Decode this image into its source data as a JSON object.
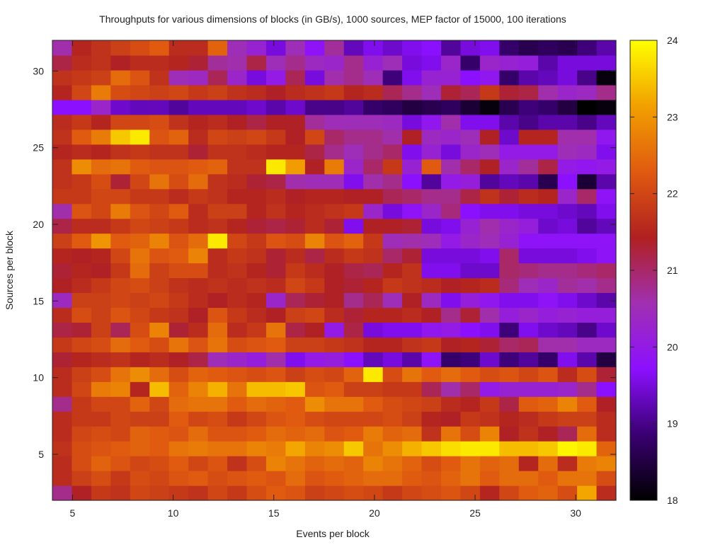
{
  "chart_data": {
    "type": "heatmap",
    "title": "Throughputs for various dimensions of blocks (in GB/s), 1000 sources, MEP factor of 15000, 100 iterations",
    "xlabel": "Events per block",
    "ylabel": "Sources per block",
    "x_range": [
      4,
      32
    ],
    "y_range": [
      2,
      32
    ],
    "x_ticks": [
      5,
      10,
      15,
      20,
      25,
      30
    ],
    "y_ticks": [
      5,
      10,
      15,
      20,
      25,
      30
    ],
    "colorbar": {
      "range": [
        18,
        24
      ],
      "ticks": [
        18,
        19,
        20,
        21,
        22,
        23,
        24
      ],
      "palette": [
        "#000000",
        "#3a0072",
        "#8c10ff",
        "#a030b0",
        "#b02020",
        "#e05a10",
        "#f2a000",
        "#ffff00"
      ]
    },
    "columns": [
      4,
      5,
      6,
      7,
      8,
      9,
      10,
      11,
      12,
      13,
      14,
      15,
      16,
      17,
      18,
      19,
      20,
      21,
      22,
      23,
      24,
      25,
      26,
      27,
      28,
      29,
      30,
      31,
      32
    ],
    "rows": [
      2,
      3,
      4,
      5,
      6,
      7,
      8,
      9,
      10,
      11,
      12,
      13,
      14,
      15,
      16,
      17,
      18,
      19,
      20,
      21,
      22,
      23,
      24,
      25,
      26,
      27,
      28,
      29,
      30,
      31,
      32
    ],
    "values": [
      [
        20.8,
        21.4,
        21.8,
        21.7,
        22.0,
        21.9,
        21.8,
        21.7,
        22.0,
        21.8,
        22.1,
        22.3,
        22.2,
        21.9,
        22.0,
        22.1,
        22.0,
        21.8,
        22.0,
        22.1,
        22.2,
        22.0,
        21.5,
        22.0,
        22.3,
        22.4,
        22.1,
        23.2,
        21.6
      ],
      [
        21.6,
        21.9,
        22.1,
        21.8,
        22.1,
        22.0,
        22.2,
        22.3,
        22.1,
        22.2,
        22.3,
        22.2,
        22.5,
        22.2,
        22.3,
        22.4,
        22.5,
        22.5,
        22.3,
        22.2,
        22.4,
        22.6,
        22.3,
        22.5,
        22.5,
        22.3,
        22.6,
        22.6,
        22.1
      ],
      [
        21.6,
        22.1,
        22.4,
        22.2,
        22.0,
        22.1,
        22.3,
        22.0,
        22.2,
        21.7,
        22.1,
        22.8,
        22.6,
        22.4,
        22.5,
        22.4,
        22.8,
        22.6,
        22.4,
        22.1,
        22.3,
        22.6,
        22.4,
        22.5,
        21.5,
        22.5,
        21.6,
        22.7,
        22.8
      ],
      [
        21.7,
        22.1,
        22.2,
        22.3,
        22.4,
        22.3,
        22.6,
        22.7,
        22.6,
        22.6,
        22.8,
        22.7,
        23.2,
        22.8,
        22.9,
        23.5,
        22.6,
        22.9,
        23.3,
        23.5,
        23.7,
        23.8,
        23.8,
        23.4,
        23.4,
        23.5,
        23.9,
        23.8,
        22.4
      ],
      [
        21.6,
        22.0,
        22.1,
        22.0,
        22.4,
        22.3,
        22.2,
        22.5,
        22.2,
        22.2,
        22.3,
        22.5,
        22.4,
        22.5,
        22.2,
        22.3,
        22.7,
        22.4,
        22.5,
        21.7,
        22.6,
        22.1,
        22.8,
        21.4,
        21.7,
        21.4,
        21.1,
        22.5,
        21.6
      ],
      [
        21.6,
        21.8,
        21.8,
        22.0,
        21.9,
        21.9,
        22.3,
        22.0,
        22.1,
        21.8,
        22.0,
        22.2,
        22.3,
        22.1,
        22.0,
        22.0,
        22.0,
        22.1,
        21.9,
        21.5,
        21.4,
        21.8,
        21.7,
        21.5,
        21.6,
        21.8,
        21.9,
        21.9,
        21.6
      ],
      [
        20.8,
        21.8,
        22.0,
        22.0,
        22.4,
        22.0,
        22.5,
        22.6,
        22.6,
        22.3,
        22.5,
        22.4,
        22.3,
        22.9,
        22.6,
        22.6,
        22.3,
        22.1,
        22.0,
        21.9,
        21.6,
        21.5,
        21.8,
        21.2,
        22.3,
        22.4,
        22.8,
        22.3,
        21.4
      ],
      [
        21.6,
        22.0,
        22.7,
        22.8,
        21.5,
        23.4,
        22.4,
        22.8,
        23.3,
        22.6,
        23.4,
        23.4,
        23.5,
        22.2,
        22.3,
        21.9,
        21.9,
        21.8,
        21.8,
        21.1,
        20.6,
        21.0,
        20.0,
        20.2,
        20.2,
        20.2,
        20.3,
        20.8,
        19.7
      ],
      [
        21.6,
        21.9,
        22.1,
        22.6,
        22.9,
        22.5,
        22.1,
        22.4,
        22.3,
        22.2,
        22.1,
        22.2,
        21.9,
        22.1,
        22.0,
        22.4,
        23.8,
        22.1,
        22.6,
        22.3,
        22.5,
        22.3,
        22.1,
        22.2,
        22.0,
        22.2,
        21.6,
        22.1,
        21.3
      ],
      [
        21.3,
        21.5,
        21.6,
        21.7,
        21.5,
        21.6,
        21.4,
        21.2,
        20.5,
        20.3,
        20.1,
        20.6,
        19.6,
        20.0,
        20.1,
        19.7,
        19.3,
        19.5,
        19.2,
        19.8,
        18.8,
        18.9,
        19.4,
        18.9,
        19.1,
        18.8,
        19.6,
        19.2,
        18.5
      ],
      [
        21.8,
        22.0,
        22.1,
        22.5,
        22.3,
        22.1,
        22.6,
        22.2,
        22.6,
        22.1,
        22.2,
        22.3,
        21.9,
        21.9,
        21.8,
        21.7,
        21.5,
        21.5,
        21.7,
        21.8,
        21.4,
        21.5,
        21.3,
        21.0,
        21.1,
        20.6,
        20.6,
        20.4,
        20.4
      ],
      [
        21.2,
        21.3,
        21.9,
        21.1,
        22.1,
        22.8,
        21.3,
        21.6,
        22.5,
        21.6,
        21.8,
        22.6,
        21.2,
        21.4,
        20.0,
        21.2,
        19.5,
        19.6,
        19.6,
        19.9,
        20.0,
        19.7,
        19.6,
        18.9,
        19.6,
        19.4,
        19.3,
        19.0,
        19.4
      ],
      [
        21.6,
        22.1,
        21.9,
        22.2,
        22.0,
        21.8,
        21.7,
        21.4,
        22.2,
        21.8,
        21.6,
        21.4,
        21.9,
        22.0,
        21.6,
        21.3,
        21.5,
        21.5,
        21.6,
        21.4,
        20.8,
        21.3,
        20.6,
        20.1,
        20.3,
        20.1,
        20.2,
        20.1,
        20.1
      ],
      [
        20.4,
        21.9,
        21.9,
        22.0,
        21.9,
        22.0,
        21.8,
        21.6,
        21.4,
        21.6,
        21.5,
        20.3,
        21.1,
        21.3,
        21.4,
        20.8,
        21.1,
        20.5,
        21.4,
        20.4,
        19.6,
        20.1,
        19.9,
        19.6,
        19.6,
        19.8,
        19.6,
        19.4,
        19.2
      ],
      [
        21.4,
        21.6,
        21.8,
        22.0,
        22.1,
        21.9,
        21.7,
        21.6,
        21.7,
        21.6,
        21.7,
        21.6,
        22.0,
        21.8,
        21.4,
        21.3,
        21.5,
        21.8,
        21.7,
        21.6,
        21.4,
        21.5,
        21.6,
        20.9,
        20.5,
        20.3,
        20.7,
        20.6,
        20.8
      ],
      [
        21.3,
        21.5,
        21.4,
        21.8,
        22.5,
        21.9,
        22.1,
        22.1,
        21.6,
        21.7,
        21.5,
        21.3,
        21.8,
        21.6,
        21.4,
        21.2,
        21.1,
        21.5,
        21.7,
        19.6,
        19.6,
        19.4,
        19.4,
        21.0,
        20.9,
        20.8,
        20.8,
        20.9,
        21.0
      ],
      [
        21.5,
        21.4,
        21.5,
        22.0,
        22.6,
        22.2,
        22.3,
        22.8,
        21.6,
        21.8,
        21.7,
        21.3,
        21.6,
        21.2,
        21.6,
        21.8,
        21.7,
        21.0,
        21.3,
        19.5,
        19.5,
        19.5,
        19.6,
        21.0,
        19.5,
        19.5,
        19.5,
        19.6,
        19.8
      ],
      [
        21.9,
        22.3,
        23.0,
        22.3,
        22.4,
        22.8,
        22.2,
        22.5,
        23.8,
        22.0,
        21.8,
        22.2,
        22.1,
        22.8,
        22.2,
        22.4,
        21.8,
        20.5,
        20.6,
        20.5,
        20.0,
        20.3,
        20.5,
        20.2,
        19.8,
        19.8,
        19.8,
        19.8,
        19.8
      ],
      [
        21.2,
        21.6,
        21.6,
        21.8,
        22.0,
        21.9,
        21.8,
        21.6,
        21.7,
        21.5,
        21.3,
        21.2,
        21.3,
        21.6,
        21.3,
        19.6,
        21.4,
        21.4,
        21.3,
        19.5,
        19.6,
        20.2,
        20.6,
        20.3,
        20.1,
        19.4,
        19.5,
        19.1,
        19.3
      ],
      [
        20.6,
        22.2,
        22.0,
        22.7,
        22.2,
        22.0,
        22.3,
        21.6,
        21.9,
        21.9,
        21.5,
        21.7,
        21.5,
        21.6,
        21.7,
        21.8,
        20.3,
        19.5,
        19.8,
        20.3,
        20.9,
        19.7,
        19.6,
        19.6,
        19.5,
        19.5,
        19.4,
        19.3,
        19.6
      ],
      [
        21.8,
        21.8,
        22.0,
        22.0,
        21.8,
        21.8,
        21.6,
        21.8,
        21.7,
        21.5,
        21.5,
        21.6,
        21.4,
        21.5,
        21.5,
        21.4,
        21.4,
        21.1,
        21.0,
        20.8,
        20.8,
        21.2,
        21.7,
        21.3,
        21.6,
        21.5,
        20.3,
        21.0,
        19.8
      ],
      [
        21.7,
        21.8,
        22.1,
        21.3,
        22.0,
        22.6,
        22.1,
        22.5,
        21.7,
        21.6,
        21.3,
        21.2,
        20.6,
        20.5,
        20.5,
        19.6,
        20.6,
        20.8,
        19.7,
        19.1,
        20.0,
        20.1,
        19.1,
        19.3,
        19.2,
        18.6,
        19.7,
        18.4,
        19.2
      ],
      [
        21.7,
        22.9,
        22.5,
        22.6,
        22.3,
        22.2,
        22.2,
        22.3,
        22.4,
        21.7,
        21.7,
        23.8,
        23.1,
        21.4,
        22.7,
        20.3,
        21.0,
        21.8,
        20.2,
        22.3,
        20.6,
        21.0,
        21.4,
        20.3,
        20.7,
        21.2,
        20.0,
        19.9,
        20.0
      ],
      [
        21.5,
        21.6,
        21.5,
        21.7,
        21.8,
        21.7,
        21.7,
        21.3,
        21.7,
        21.7,
        21.6,
        21.5,
        21.5,
        21.2,
        20.8,
        20.5,
        20.8,
        21.0,
        19.6,
        20.2,
        19.5,
        20.3,
        20.5,
        20.0,
        20.0,
        20.0,
        20.5,
        20.4,
        19.6
      ],
      [
        21.7,
        22.3,
        22.7,
        23.5,
        23.8,
        22.2,
        22.4,
        21.6,
        22.0,
        21.9,
        22.0,
        21.8,
        21.4,
        22.0,
        21.0,
        20.8,
        20.8,
        20.6,
        21.4,
        20.4,
        20.3,
        20.5,
        21.4,
        19.4,
        21.5,
        21.5,
        20.6,
        20.6,
        19.9
      ],
      [
        21.6,
        21.8,
        21.5,
        22.0,
        22.0,
        22.1,
        21.7,
        21.5,
        21.6,
        21.4,
        21.2,
        21.4,
        21.4,
        20.7,
        20.5,
        20.5,
        20.5,
        20.4,
        19.5,
        19.9,
        20.6,
        19.6,
        19.6,
        19.2,
        19.0,
        19.2,
        19.2,
        19.0,
        19.3
      ],
      [
        19.7,
        19.7,
        20.3,
        19.4,
        19.3,
        19.3,
        19.1,
        19.3,
        19.3,
        19.3,
        19.4,
        19.2,
        19.4,
        19.0,
        19.0,
        19.1,
        18.8,
        18.7,
        18.5,
        18.6,
        18.7,
        18.4,
        18.1,
        18.6,
        18.9,
        18.8,
        18.5,
        18.0,
        18.1
      ],
      [
        21.5,
        22.0,
        22.7,
        22.1,
        22.0,
        21.9,
        22.0,
        21.8,
        21.9,
        21.7,
        21.6,
        21.4,
        21.6,
        21.7,
        21.8,
        21.5,
        21.6,
        21.1,
        20.8,
        20.5,
        21.3,
        21.1,
        21.8,
        21.3,
        21.2,
        20.6,
        20.3,
        20.4,
        20.8
      ],
      [
        21.7,
        21.8,
        21.9,
        22.5,
        22.2,
        21.7,
        20.5,
        20.4,
        21.1,
        20.3,
        19.5,
        20.0,
        21.1,
        19.5,
        20.6,
        20.8,
        20.5,
        18.9,
        19.6,
        20.2,
        20.2,
        19.7,
        19.9,
        18.8,
        19.2,
        19.3,
        19.5,
        19.0,
        18.1
      ],
      [
        21.2,
        21.6,
        21.7,
        21.4,
        21.6,
        21.6,
        21.5,
        21.3,
        20.7,
        20.6,
        21.2,
        20.5,
        20.8,
        20.4,
        20.3,
        20.8,
        20.2,
        20.5,
        19.5,
        19.6,
        20.3,
        18.8,
        20.3,
        20.2,
        20.1,
        19.2,
        19.5,
        19.5,
        19.5
      ],
      [
        20.6,
        21.5,
        21.7,
        21.9,
        22.1,
        22.3,
        21.6,
        21.6,
        22.4,
        20.5,
        20.2,
        19.5,
        20.5,
        19.8,
        20.7,
        19.3,
        19.6,
        19.4,
        19.6,
        19.7,
        19.1,
        19.5,
        19.6,
        18.8,
        18.6,
        18.7,
        18.6,
        18.9,
        19.2
      ]
    ]
  }
}
